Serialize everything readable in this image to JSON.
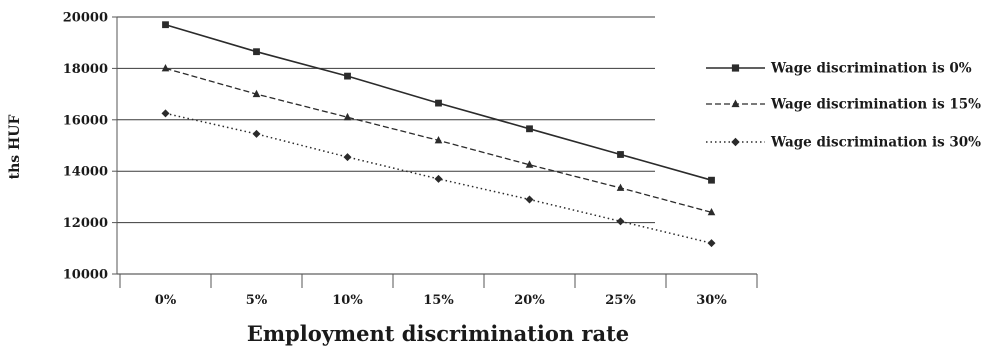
{
  "chart_data": {
    "type": "line",
    "categories": [
      "0%",
      "5%",
      "10%",
      "15%",
      "20%",
      "25%",
      "30%"
    ],
    "xlabel": "Employment discrimination rate",
    "ylabel": "ths HUF",
    "ylim": [
      10000,
      20000
    ],
    "yticks": [
      10000,
      12000,
      14000,
      16000,
      18000,
      20000
    ],
    "grid": "horizontal",
    "legend_position": "right",
    "series": [
      {
        "name": "Wage discrimination is 0%",
        "line_style": "solid",
        "marker": "square",
        "values": [
          19700,
          18650,
          17700,
          16650,
          15650,
          14650,
          13650
        ]
      },
      {
        "name": "Wage discrimination is 15%",
        "line_style": "dashed",
        "marker": "triangle",
        "values": [
          18000,
          17000,
          16100,
          15200,
          14250,
          13350,
          12400
        ]
      },
      {
        "name": "Wage discrimination is 30%",
        "line_style": "dotted",
        "marker": "diamond",
        "values": [
          16250,
          15450,
          14550,
          13700,
          12900,
          12050,
          11200
        ]
      }
    ]
  },
  "colors": {
    "line": "#2b2b2b",
    "grid": "#3a3a3a",
    "axis": "#555555"
  }
}
